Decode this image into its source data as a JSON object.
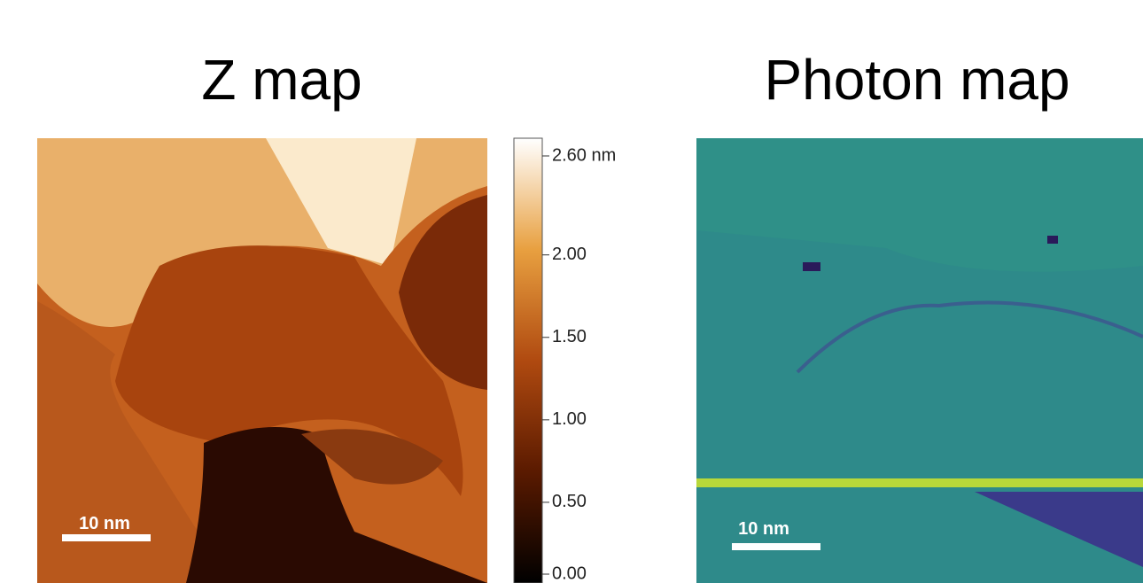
{
  "panels": [
    {
      "title": "Z map",
      "scale_bar": "10 nm"
    },
    {
      "title": "Photon map",
      "scale_bar": "10 nm"
    }
  ],
  "colorbar": {
    "lim": [
      0,
      2.6
    ],
    "ticks": [
      {
        "value": 2.6,
        "label": "2.60 nm"
      },
      {
        "value": 2,
        "label": "2.00"
      },
      {
        "value": 1.5,
        "label": "1.50"
      },
      {
        "value": 1,
        "label": "1.00"
      },
      {
        "value": 0.5,
        "label": "0.50"
      },
      {
        "value": 0,
        "label": "0.00"
      }
    ]
  }
}
